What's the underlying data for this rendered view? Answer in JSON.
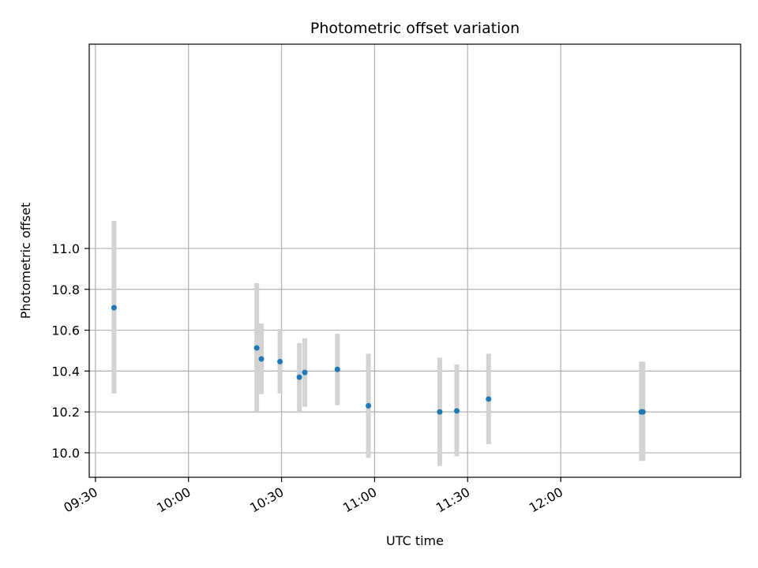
{
  "chart_data": {
    "type": "scatter",
    "title": "Photometric offset variation",
    "xlabel": "UTC time",
    "ylabel": "Photometric offset",
    "grid": true,
    "xlim": [
      "09:28",
      "12:58"
    ],
    "ylim": [
      9.88,
      12.0
    ],
    "x_ticks": [
      "09:30",
      "10:00",
      "10:30",
      "11:00",
      "11:30",
      "12:00"
    ],
    "y_ticks": [
      "10.0",
      "10.2",
      "10.4",
      "10.6",
      "10.8",
      "11.0"
    ],
    "x_tick_rotation_deg": 30,
    "colors": {
      "points": "#1f77b4",
      "errorbars": "#d3d3d3",
      "grid": "#b0b0b0"
    },
    "points": [
      {
        "time": "09:36",
        "y": 10.71,
        "err_low": 10.29,
        "err_high": 11.135
      },
      {
        "time": "10:22",
        "y": 10.513,
        "err_low": 10.2,
        "err_high": 10.83
      },
      {
        "time": "10:23:30",
        "y": 10.459,
        "err_low": 10.287,
        "err_high": 10.633
      },
      {
        "time": "10:29:30",
        "y": 10.446,
        "err_low": 10.29,
        "err_high": 10.605
      },
      {
        "time": "10:35:45",
        "y": 10.37,
        "err_low": 10.2,
        "err_high": 10.537
      },
      {
        "time": "10:37:30",
        "y": 10.393,
        "err_low": 10.225,
        "err_high": 10.56
      },
      {
        "time": "10:48",
        "y": 10.408,
        "err_low": 10.233,
        "err_high": 10.583
      },
      {
        "time": "10:58",
        "y": 10.23,
        "err_low": 9.975,
        "err_high": 10.485
      },
      {
        "time": "11:21",
        "y": 10.2,
        "err_low": 9.935,
        "err_high": 10.465
      },
      {
        "time": "11:26:30",
        "y": 10.205,
        "err_low": 9.983,
        "err_high": 10.432
      },
      {
        "time": "11:36:45",
        "y": 10.263,
        "err_low": 10.042,
        "err_high": 10.485
      },
      {
        "time": "12:26",
        "y": 10.2,
        "err_low": 9.96,
        "err_high": 10.446
      },
      {
        "time": "12:26:30",
        "y": 10.2,
        "err_low": 9.96,
        "err_high": 10.446
      }
    ]
  }
}
